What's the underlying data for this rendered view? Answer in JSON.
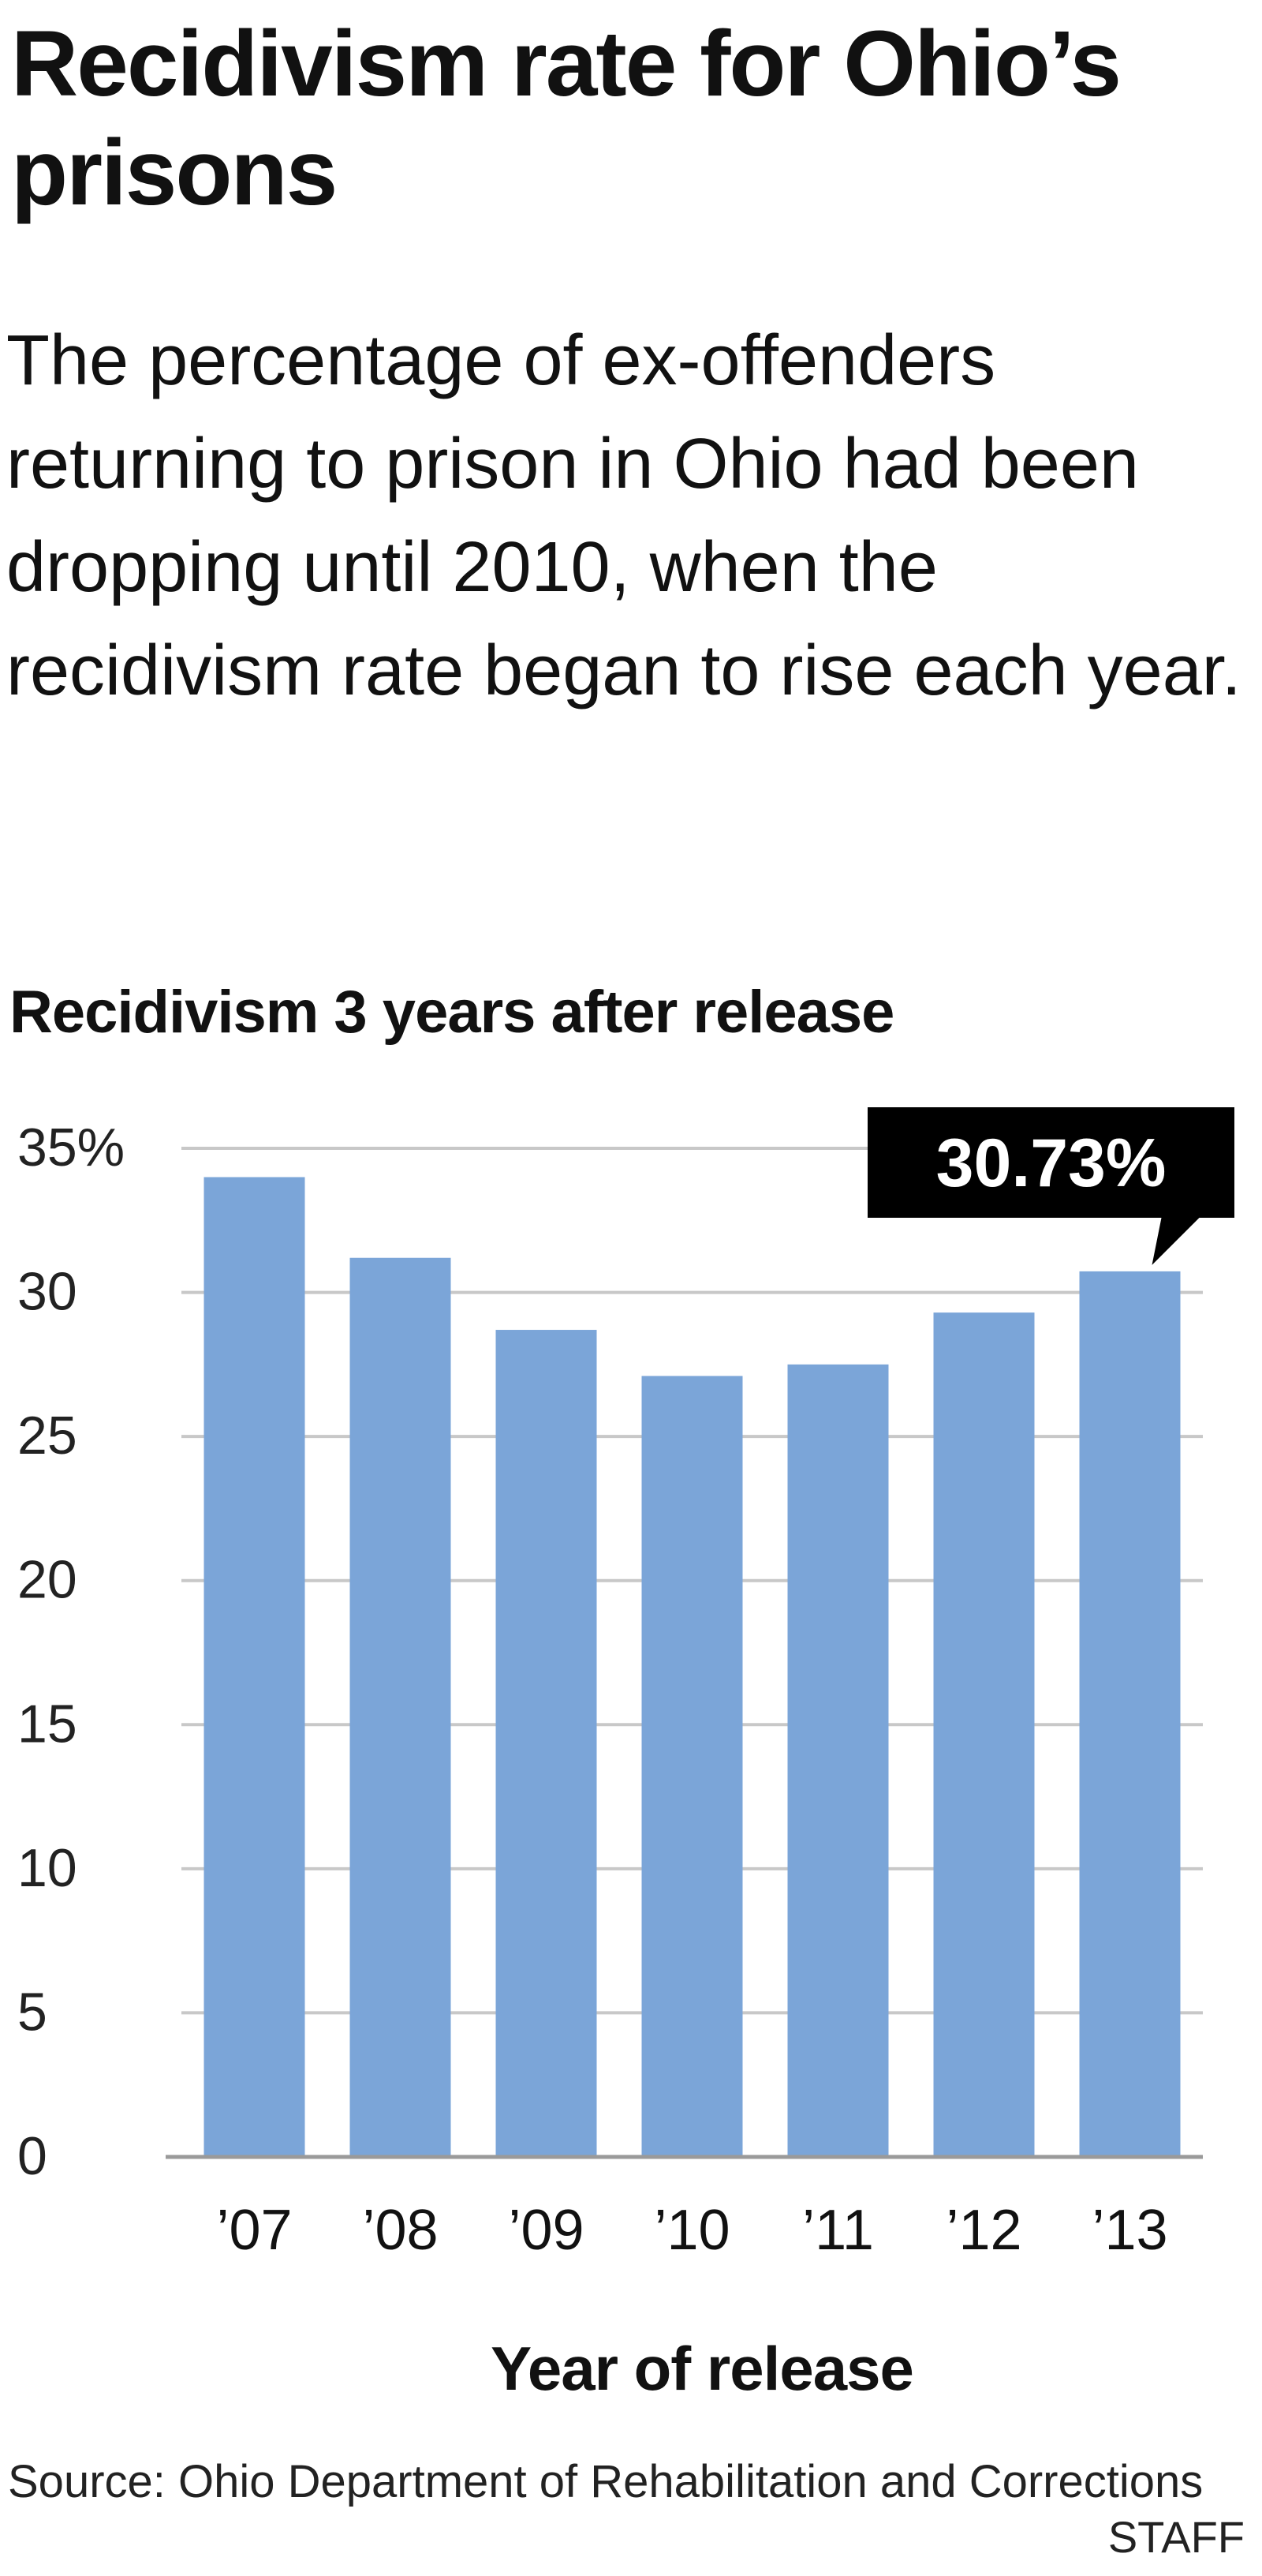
{
  "header": {
    "title": "Recidivism rate for Ohio’s prisons",
    "subtitle": "The percentage of ex-offenders returning to prison in Ohio had been dropping until 2010, when the recidivism rate began to rise each year.",
    "chart_heading": "Recidivism 3 years after release"
  },
  "chart_data": {
    "type": "bar",
    "title": "Recidivism 3 years after release",
    "xlabel": "Year of release",
    "ylabel": "",
    "categories": [
      "’07",
      "’08",
      "’09",
      "’10",
      "’11",
      "’12",
      "’13"
    ],
    "values": [
      34.0,
      31.2,
      28.7,
      27.1,
      27.5,
      29.3,
      30.73
    ],
    "ylim": [
      0,
      35
    ],
    "yticks": [
      0,
      5,
      10,
      15,
      20,
      25,
      30,
      35
    ],
    "ytick_labels": [
      "0",
      "5",
      "10",
      "15",
      "20",
      "25",
      "30",
      "35%"
    ],
    "grid": true,
    "bar_color": "#7ba5d8",
    "annotation": {
      "category": "’13",
      "label": "30.73%",
      "box_color": "#000000"
    }
  },
  "footer": {
    "source": "Source: Ohio Department of Rehabilitation and Corrections",
    "credit": "STAFF"
  }
}
